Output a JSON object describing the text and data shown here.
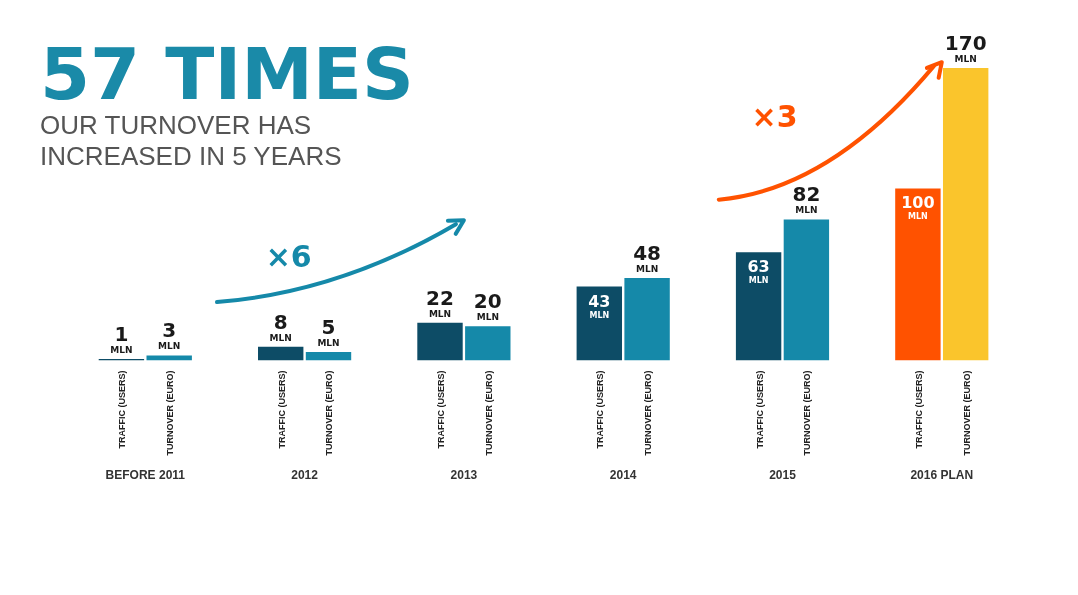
{
  "chart_data": {
    "type": "bar",
    "title": "57 TIMES",
    "subtitle": "OUR TURNOVER HAS INCREASED IN 5 YEARS",
    "categories": [
      "BEFORE 2011",
      "2012",
      "2013",
      "2014",
      "2015",
      "2016 PLAN"
    ],
    "series": [
      {
        "name": "TRAFFIC (USERS)",
        "colors": [
          "#0d4c66",
          "#0d4c66",
          "#0d4c66",
          "#0d4c66",
          "#0d4c66",
          "#ff5200"
        ],
        "values": [
          1,
          8,
          22,
          43,
          63,
          100
        ],
        "value_labels": [
          "1 MLN",
          "8 MLN",
          "22 MLN",
          "43 MLN",
          "63 MLN",
          "100 MLN"
        ]
      },
      {
        "name": "TURNOVER (EURO)",
        "colors": [
          "#1589a9",
          "#1589a9",
          "#1589a9",
          "#1589a9",
          "#1589a9",
          "#fac52c"
        ],
        "values": [
          3,
          5,
          20,
          48,
          82,
          170
        ],
        "value_labels": [
          "3 MLN",
          "5 MLN",
          "20 MLN",
          "48 MLN",
          "82 MLN",
          "170 MLN"
        ]
      }
    ],
    "annotations": [
      "×6",
      "×3"
    ]
  }
}
